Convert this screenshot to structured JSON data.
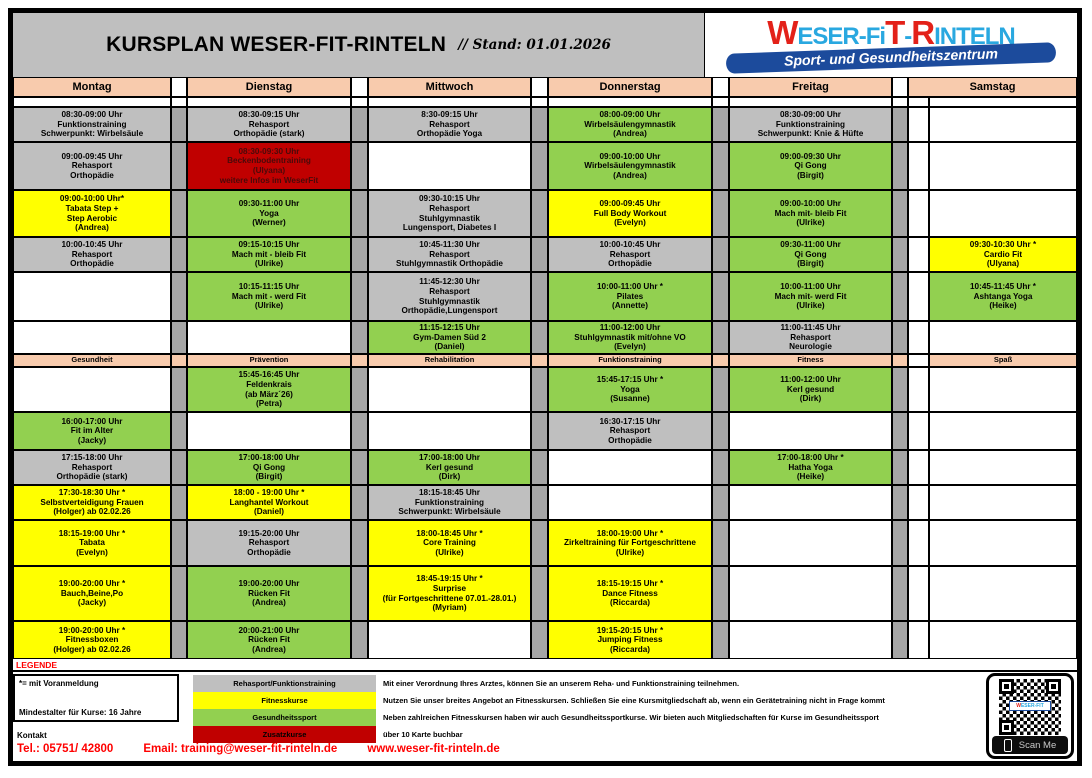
{
  "header": {
    "title": "KURSPLAN WESER-FIT-RINTELN",
    "stand": "// Stand: 01.01.2026"
  },
  "logo": {
    "w": "W",
    "p1": "ESER-Fi",
    "t": "T",
    "d": "-",
    "r": "R",
    "p2": "INTELN",
    "subtitle": "Sport- und Gesundheitszentrum",
    "blue": "#29a8e0",
    "red": "#e32119",
    "banner_blue": "#1c4b9c"
  },
  "colors": {
    "grey": "#bfbfbf",
    "green": "#92d050",
    "yellow": "#ffff00",
    "red": "#c00000",
    "band": "#f8cbad",
    "spacer": "#a6a6a6",
    "none": "#ffffff"
  },
  "schedule": {
    "days": [
      {
        "name": "Montag",
        "band": "Gesundheit",
        "morning": [
          {
            "c": "grey",
            "t": "08:30-09:00 Uhr\nFunktionstraining\nSchwerpunkt: Wirbelsäule"
          },
          {
            "c": "grey",
            "t": "09:00-09:45 Uhr\nRehasport\nOrthopädie"
          },
          {
            "c": "yellow",
            "t": "09:00-10:00 Uhr*\nTabata Step +\nStep Aerobic\n(Andrea)"
          },
          {
            "c": "grey",
            "t": "10:00-10:45 Uhr\nRehasport\nOrthopädie"
          },
          {
            "c": "none",
            "t": ""
          },
          {
            "c": "none",
            "t": ""
          }
        ],
        "evening": [
          {
            "c": "none",
            "t": ""
          },
          {
            "c": "green",
            "t": "16:00-17:00 Uhr\nFit im Alter\n(Jacky)"
          },
          {
            "c": "grey",
            "t": "17:15-18:00 Uhr\nRehasport\nOrthopädie (stark)"
          },
          {
            "c": "yellow",
            "t": "17:30-18:30 Uhr *\nSelbstverteidigung Frauen\n(Holger) ab 02.02.26"
          },
          {
            "c": "yellow",
            "t": "18:15-19:00 Uhr *\nTabata\n(Evelyn)"
          },
          {
            "c": "yellow",
            "t": "19:00-20:00 Uhr *\nBauch,Beine,Po\n(Jacky)"
          },
          {
            "c": "yellow",
            "t": "19:00-20:00 Uhr *\nFitnessboxen\n(Holger) ab 02.02.26"
          }
        ]
      },
      {
        "name": "Dienstag",
        "band": "Prävention",
        "morning": [
          {
            "c": "grey",
            "t": "08:30-09:15 Uhr\nRehasport\nOrthopädie (stark)"
          },
          {
            "c": "red",
            "t": "08:30-09:30 Uhr\nBeckenbodentraining\n(Ulyana)\nweitere Infos im WeserFit"
          },
          {
            "c": "green",
            "t": "09:30-11:00 Uhr\nYoga\n(Werner)"
          },
          {
            "c": "green",
            "t": "09:15-10:15 Uhr\nMach mit - bleib Fit\n(Ulrike)"
          },
          {
            "c": "green",
            "t": "10:15-11:15 Uhr\nMach mit - werd Fit\n(Ulrike)"
          },
          {
            "c": "none",
            "t": ""
          }
        ],
        "evening": [
          {
            "c": "green",
            "t": "15:45-16:45 Uhr\nFeldenkrais\n(ab März´26)\n(Petra)"
          },
          {
            "c": "none",
            "t": ""
          },
          {
            "c": "green",
            "t": "17:00-18:00 Uhr\nQi Gong\n(Birgit)"
          },
          {
            "c": "yellow",
            "t": "18:00 - 19:00 Uhr *\nLanghantel Workout\n(Daniel)"
          },
          {
            "c": "grey",
            "t": "19:15-20:00 Uhr\nRehasport\nOrthopädie"
          },
          {
            "c": "green",
            "t": "19:00-20:00 Uhr\nRücken Fit\n(Andrea)"
          },
          {
            "c": "green",
            "t": "20:00-21:00 Uhr\nRücken Fit\n(Andrea)"
          }
        ]
      },
      {
        "name": "Mittwoch",
        "band": "Rehabilitation",
        "morning": [
          {
            "c": "grey",
            "t": "8:30-09:15 Uhr\nRehasport\nOrthopädie Yoga"
          },
          {
            "c": "none",
            "t": ""
          },
          {
            "c": "grey",
            "t": "09:30-10:15 Uhr\nRehasport\nStuhlgymnastik\nLungensport, Diabetes I"
          },
          {
            "c": "grey",
            "t": "10:45-11:30 Uhr\nRehasport\nStuhlgymnastik Orthopädie"
          },
          {
            "c": "grey",
            "t": "11:45-12:30 Uhr\nRehasport\nStuhlgymnastik\nOrthopädie,Lungensport"
          },
          {
            "c": "green",
            "t": "11:15-12:15 Uhr\nGym-Damen Süd 2\n(Daniel)"
          }
        ],
        "evening": [
          {
            "c": "none",
            "t": ""
          },
          {
            "c": "none",
            "t": ""
          },
          {
            "c": "green",
            "t": "17:00-18:00 Uhr\nKerl gesund\n(Dirk)"
          },
          {
            "c": "grey",
            "t": "18:15-18:45 Uhr\nFunktionstraining\nSchwerpunkt: Wirbelsäule"
          },
          {
            "c": "yellow",
            "t": "18:00-18:45 Uhr *\nCore Training\n(Ulrike)"
          },
          {
            "c": "yellow",
            "t": "18:45-19:15 Uhr *\nSurprise\n(für Fortgeschrittene 07.01.-28.01.)\n(Myriam)"
          },
          {
            "c": "none",
            "t": ""
          }
        ]
      },
      {
        "name": "Donnerstag",
        "band": "Funktionstraining",
        "morning": [
          {
            "c": "green",
            "t": "08:00-09:00 Uhr\nWirbelsäulengymnastik\n(Andrea)"
          },
          {
            "c": "green",
            "t": "09:00-10:00 Uhr\nWirbelsäulengymnastik\n(Andrea)"
          },
          {
            "c": "yellow",
            "t": "09:00-09:45 Uhr\nFull Body Workout\n(Evelyn)"
          },
          {
            "c": "grey",
            "t": "10:00-10:45 Uhr\nRehasport\nOrthopädie"
          },
          {
            "c": "green",
            "t": "10:00-11:00 Uhr *\nPilates\n(Annette)"
          },
          {
            "c": "green",
            "t": "11:00-12:00 Uhr\nStuhlgymnastik mit/ohne VO\n(Evelyn)"
          }
        ],
        "evening": [
          {
            "c": "green",
            "t": "15:45-17:15 Uhr *\nYoga\n(Susanne)"
          },
          {
            "c": "grey",
            "t": "16:30-17:15 Uhr\nRehasport\nOrthopädie"
          },
          {
            "c": "none",
            "t": ""
          },
          {
            "c": "none",
            "t": ""
          },
          {
            "c": "yellow",
            "t": "18:00-19:00 Uhr *\nZirkeltraining für Fortgeschrittene\n(Ulrike)"
          },
          {
            "c": "yellow",
            "t": "18:15-19:15 Uhr *\nDance Fitness\n(Riccarda)"
          },
          {
            "c": "yellow",
            "t": "19:15-20:15 Uhr *\nJumping Fitness\n(Riccarda)"
          }
        ]
      },
      {
        "name": "Freitag",
        "band": "Fitness",
        "morning": [
          {
            "c": "grey",
            "t": "08:30-09:00 Uhr\nFunktionstraining\nSchwerpunkt: Knie & Hüfte"
          },
          {
            "c": "green",
            "t": "09:00-09:30 Uhr\nQi Gong\n(Birgit)"
          },
          {
            "c": "green",
            "t": "09:00-10:00 Uhr\nMach mit- bleib Fit\n(Ulrike)"
          },
          {
            "c": "green",
            "t": "09:30-11:00 Uhr\nQi Gong\n(Birgit)"
          },
          {
            "c": "green",
            "t": "10:00-11:00 Uhr\nMach mit- werd Fit\n(Ulrike)"
          },
          {
            "c": "grey",
            "t": "11:00-11:45 Uhr\nRehasport\nNeurologie"
          }
        ],
        "evening": [
          {
            "c": "green",
            "t": "11:00-12:00 Uhr\nKerl gesund\n(Dirk)"
          },
          {
            "c": "none",
            "t": ""
          },
          {
            "c": "green",
            "t": "17:00-18:00 Uhr *\nHatha Yoga\n(Heike)"
          },
          {
            "c": "none",
            "t": ""
          },
          {
            "c": "none",
            "t": ""
          },
          {
            "c": "none",
            "t": ""
          },
          {
            "c": "none",
            "t": ""
          }
        ]
      },
      {
        "name": "Samstag",
        "band": "Spaß",
        "morning": [
          {
            "c": "none",
            "t": ""
          },
          {
            "c": "none",
            "t": ""
          },
          {
            "c": "none",
            "t": ""
          },
          {
            "c": "yellow",
            "t": "09:30-10:30 Uhr *\nCardio Fit\n(Ulyana)"
          },
          {
            "c": "green",
            "t": "10:45-11:45 Uhr *\nAshtanga Yoga\n(Heike)"
          },
          {
            "c": "none",
            "t": ""
          }
        ],
        "evening": [
          {
            "c": "none",
            "t": ""
          },
          {
            "c": "none",
            "t": ""
          },
          {
            "c": "none",
            "t": ""
          },
          {
            "c": "none",
            "t": ""
          },
          {
            "c": "none",
            "t": ""
          },
          {
            "c": "none",
            "t": ""
          },
          {
            "c": "none",
            "t": ""
          }
        ]
      }
    ]
  },
  "legend": {
    "legende_label": "LEGENDE",
    "voranmeldung": "*= mit Voranmeldung",
    "mindestalter": "Mindestalter für Kurse: 16 Jahre",
    "kontakt_label": "Kontakt",
    "contact": {
      "tel": "Tel.: 05751/ 42800",
      "email": "Email: training@weser-fit-rinteln.de",
      "web": "www.weser-fit-rinteln.de"
    },
    "items": [
      {
        "label": "Rehasport/Funktionstraining",
        "color": "#bfbfbf",
        "desc": "Mit einer Verordnung Ihres Arztes, können Sie an unserem Reha- und Funktionstraining teilnehmen."
      },
      {
        "label": "Fitnesskurse",
        "color": "#ffff00",
        "desc": "Nutzen Sie unser breites Angebot an Fitnesskursen. Schließen Sie eine Kursmitgliedschaft ab, wenn ein Gerätetraining nicht in Frage kommt"
      },
      {
        "label": "Gesundheitssport",
        "color": "#92d050",
        "desc": "Neben zahlreichen Fitnesskursen haben wir auch Gesundheitssportkurse. Wir bieten auch Mitgliedschaften für Kurse im Gesundheitssport"
      },
      {
        "label": "Zusatzkurse",
        "color": "#c00000",
        "desc": "über 10 Karte buchbar"
      }
    ],
    "qr_label": "Scan Me"
  }
}
